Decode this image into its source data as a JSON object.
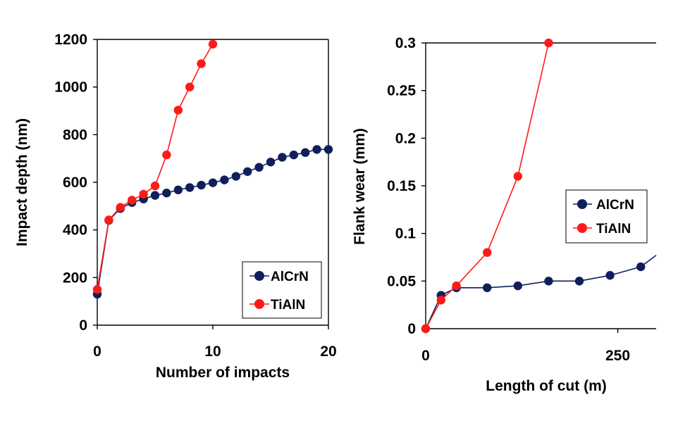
{
  "colors": {
    "AlCrN": "#0f1f5c",
    "TiAlN": "#ff1a1a"
  },
  "chart_data": [
    {
      "type": "line",
      "title": "",
      "xlabel": "Number of impacts",
      "ylabel": "Impact depth (nm)",
      "xlim": [
        0,
        20
      ],
      "ylim": [
        0,
        1200
      ],
      "xticks": [
        0,
        10,
        20
      ],
      "yticks": [
        0,
        200,
        400,
        600,
        800,
        1000,
        1200
      ],
      "legend_position": "bottom-right",
      "series": [
        {
          "name": "AlCrN",
          "x": [
            0,
            1,
            2,
            3,
            4,
            5,
            6,
            7,
            8,
            9,
            10,
            11,
            12,
            13,
            14,
            15,
            16,
            17,
            18,
            19,
            20
          ],
          "y": [
            130,
            440,
            490,
            515,
            530,
            545,
            555,
            568,
            578,
            588,
            598,
            610,
            625,
            645,
            663,
            685,
            705,
            715,
            725,
            738,
            738
          ]
        },
        {
          "name": "TiAlN",
          "x": [
            0,
            1,
            2,
            3,
            4,
            5,
            6,
            7,
            8,
            9,
            10
          ],
          "y": [
            150,
            442,
            495,
            525,
            550,
            585,
            715,
            903,
            1000,
            1098,
            1180
          ]
        }
      ]
    },
    {
      "type": "line",
      "title": "",
      "xlabel": "Length of cut (m)",
      "ylabel": "Flank wear (mm)",
      "xlim": [
        0,
        300
      ],
      "ylim": [
        0,
        0.3
      ],
      "xticks": [
        0,
        250
      ],
      "yticks": [
        0,
        0.05,
        0.1,
        0.15,
        0.2,
        0.25,
        0.3
      ],
      "legend_position": "middle-right",
      "series": [
        {
          "name": "AlCrN",
          "x": [
            0,
            20,
            40,
            80,
            120,
            160,
            200,
            240,
            280,
            300
          ],
          "y": [
            0,
            0.035,
            0.043,
            0.043,
            0.045,
            0.05,
            0.05,
            0.056,
            0.065,
            0.077
          ],
          "markers": 9
        },
        {
          "name": "TiAlN",
          "x": [
            0,
            20,
            40,
            80,
            120,
            160
          ],
          "y": [
            0,
            0.03,
            0.045,
            0.08,
            0.16,
            0.3
          ]
        }
      ]
    }
  ]
}
